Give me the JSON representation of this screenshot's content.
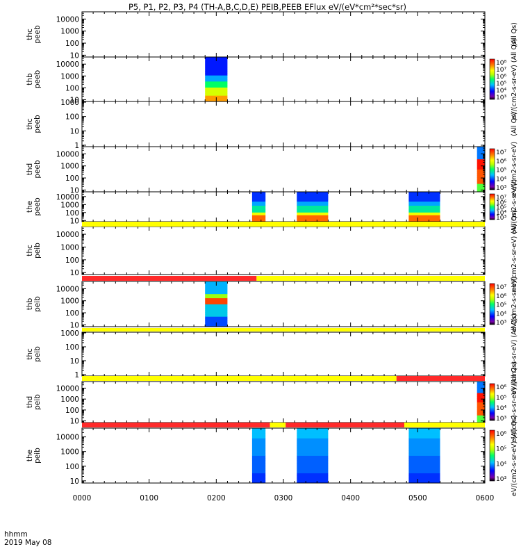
{
  "chart_data": {
    "type": "heatmap",
    "title": "P5, P1, P2, P3, P4 (TH-A,B,C,D,E) PEIB,PEEB EFlux eV/(eV*cm²*sec*sr)",
    "x_unit_label": "hhmm",
    "date_label": "2019 May 08",
    "x_ticks": [
      "0000",
      "0100",
      "0200",
      "0300",
      "0400",
      "0500",
      "0600"
    ],
    "x_range_hours": [
      0,
      6
    ],
    "panels": [
      {
        "id": "thc-peeb",
        "ylabel": [
          "thc",
          "peeb"
        ],
        "yticks": [
          "10000",
          "1000",
          "100",
          "10"
        ],
        "ylog": [
          0.85,
          4.6
        ],
        "colorbar": null,
        "zlabel": "(All Qs)",
        "data_blocks": []
      },
      {
        "id": "thb-peeb",
        "ylabel": [
          "thb",
          "peeb"
        ],
        "yticks": [
          "10000",
          "1000",
          "100",
          "10"
        ],
        "ylog": [
          0.85,
          4.6
        ],
        "colorbar": {
          "labels": [
            "10⁸",
            "10⁷",
            "10⁶",
            "10⁵",
            "10⁴",
            "10³"
          ],
          "exp_range": [
            3,
            8
          ]
        },
        "zlabel": "eV/(cm2-s-sr-eV) (All Qs)",
        "data_blocks": [
          {
            "start_hhmm": "0150",
            "end_hhmm": "0210",
            "spectrum": "peeb-low"
          }
        ]
      },
      {
        "id": "thc-peeb-2",
        "ylabel": [
          "thc",
          "peeb"
        ],
        "yticks": [
          "1000",
          "100",
          "10",
          "1"
        ],
        "ylog": [
          -0.1,
          3.05
        ],
        "colorbar": null,
        "zlabel": "(All Qs)",
        "data_blocks": []
      },
      {
        "id": "thd-peeb",
        "ylabel": [
          "thd",
          "peeb"
        ],
        "yticks": [
          "10000",
          "1000",
          "100",
          "10"
        ],
        "ylog": [
          0.85,
          4.6
        ],
        "colorbar": {
          "labels": [
            "10⁷",
            "10⁶",
            "10⁵",
            "10⁴",
            "10³"
          ],
          "exp_range": [
            3,
            7
          ]
        },
        "zlabel": "eV/(cm2-s-sr-eV)",
        "data_blocks": [
          {
            "start_hhmm": "0553",
            "end_hhmm": "0600",
            "spectrum": "edge-hot"
          }
        ]
      },
      {
        "id": "the-peeb",
        "ylabel": [
          "the",
          "peeb"
        ],
        "yticks": [
          "10000",
          "1000",
          "100",
          "10"
        ],
        "ylog": [
          0.85,
          4.6
        ],
        "colorbar": {
          "labels": [
            "10⁷",
            "10⁶",
            "10⁵",
            "10⁴",
            "10³"
          ],
          "exp_range": [
            3,
            7
          ]
        },
        "zlabel": "eV/(cm2-s-sr-eV)",
        "data_blocks": [
          {
            "start_hhmm": "0232",
            "end_hhmm": "0244",
            "spectrum": "peeb-the"
          },
          {
            "start_hhmm": "0312",
            "end_hhmm": "0340",
            "spectrum": "peeb-the"
          },
          {
            "start_hhmm": "0452",
            "end_hhmm": "0520",
            "spectrum": "peeb-the"
          }
        ]
      },
      {
        "id": "thc-peib",
        "ylabel": [
          "thc",
          "peib"
        ],
        "yticks": [
          "10000",
          "1000",
          "100",
          "10"
        ],
        "ylog": [
          0.85,
          4.6
        ],
        "colorbar": null,
        "zlabel": "eV/(cm2-s-sr-eV) (All Qs)",
        "data_blocks": []
      },
      {
        "id": "thb-peib",
        "ylabel": [
          "thb",
          "peib"
        ],
        "yticks": [
          "10000",
          "1000",
          "100",
          "10"
        ],
        "ylog": [
          0.85,
          4.6
        ],
        "colorbar": {
          "labels": [
            "10⁷",
            "10⁶",
            "10⁵",
            "10⁴",
            "10³"
          ],
          "exp_range": [
            3,
            7
          ]
        },
        "zlabel": "eV/(cm2-s-sr-eV)",
        "data_blocks": [
          {
            "start_hhmm": "0150",
            "end_hhmm": "0210",
            "spectrum": "peib-thb"
          }
        ]
      },
      {
        "id": "thc-peib-2",
        "ylabel": [
          "thc",
          "peib"
        ],
        "yticks": [
          "1000",
          "100",
          "10",
          "1"
        ],
        "ylog": [
          -0.1,
          3.05
        ],
        "colorbar": null,
        "zlabel": "eV/(cm2-s-sr-eV) (All Qs)",
        "data_blocks": []
      },
      {
        "id": "thd-peib",
        "ylabel": [
          "thd",
          "peib"
        ],
        "yticks": [
          "10000",
          "1000",
          "100",
          "10"
        ],
        "ylog": [
          0.85,
          4.6
        ],
        "colorbar": {
          "labels": [
            "10⁶",
            "10⁵",
            "10⁴",
            "10³"
          ],
          "exp_range": [
            3,
            6
          ]
        },
        "zlabel": "eV/(cm2-s-sr-eV) (All Qs)",
        "data_blocks": [
          {
            "start_hhmm": "0553",
            "end_hhmm": "0600",
            "spectrum": "edge-hot"
          }
        ]
      },
      {
        "id": "the-peib",
        "ylabel": [
          "the",
          "peib"
        ],
        "yticks": [
          "10000",
          "1000",
          "100",
          "10"
        ],
        "ylog": [
          0.85,
          4.6
        ],
        "colorbar": {
          "labels": [
            "10⁶",
            "10⁵",
            "10⁴",
            "10³"
          ],
          "exp_range": [
            3,
            6
          ]
        },
        "zlabel": "eV/(cm2-s-sr-eV) (All Qs)",
        "data_blocks": [
          {
            "start_hhmm": "0232",
            "end_hhmm": "0244",
            "spectrum": "peib-the"
          },
          {
            "start_hhmm": "0312",
            "end_hhmm": "0340",
            "spectrum": "peib-the"
          },
          {
            "start_hhmm": "0452",
            "end_hhmm": "0520",
            "spectrum": "peib-the"
          }
        ]
      }
    ],
    "status_bars": [
      {
        "after_panel": "the-peeb",
        "segments": [
          {
            "start_hhmm": "0000",
            "end_hhmm": "0600",
            "color": "#ffff00"
          }
        ]
      },
      {
        "after_panel": "thc-peib",
        "segments": [
          {
            "start_hhmm": "0000",
            "end_hhmm": "0236",
            "color": "#ff2a2a"
          },
          {
            "start_hhmm": "0236",
            "end_hhmm": "0600",
            "color": "#ffff00"
          }
        ]
      },
      {
        "after_panel": "thb-peib",
        "segments": [
          {
            "start_hhmm": "0000",
            "end_hhmm": "0600",
            "color": "#ffff00"
          }
        ]
      },
      {
        "after_panel": "thc-peib-2",
        "segments": [
          {
            "start_hhmm": "0000",
            "end_hhmm": "0441",
            "color": "#ffff00"
          },
          {
            "start_hhmm": "0441",
            "end_hhmm": "0600",
            "color": "#ff2a2a"
          }
        ]
      },
      {
        "after_panel": "thd-peib",
        "segments": [
          {
            "start_hhmm": "0000",
            "end_hhmm": "0248",
            "color": "#ff2a2a"
          },
          {
            "start_hhmm": "0248",
            "end_hhmm": "0302",
            "color": "#ffff00"
          },
          {
            "start_hhmm": "0302",
            "end_hhmm": "0448",
            "color": "#ff2a2a"
          },
          {
            "start_hhmm": "0448",
            "end_hhmm": "0600",
            "color": "#ffff00"
          }
        ]
      }
    ],
    "grid": false,
    "legend": "none"
  }
}
